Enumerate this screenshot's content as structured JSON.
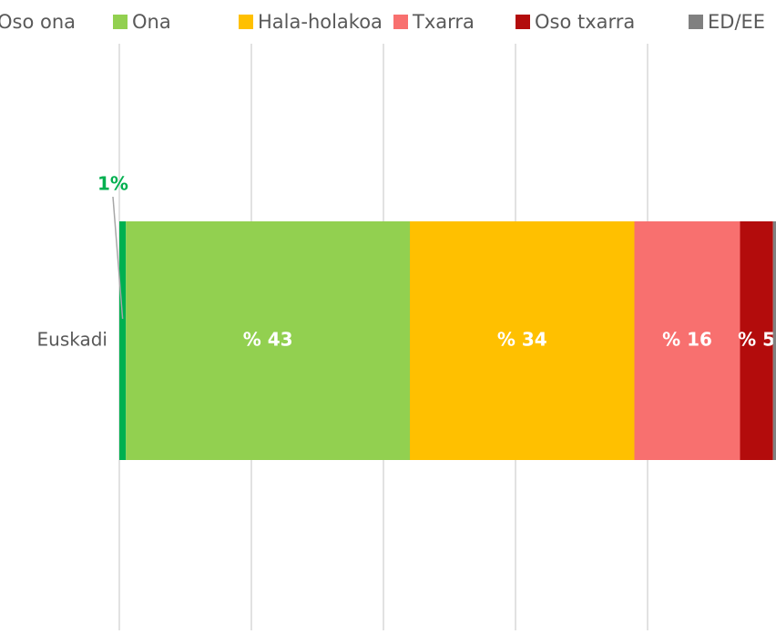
{
  "chart_data": {
    "type": "stacked_bar_horizontal",
    "categories": [
      "Euskadi"
    ],
    "series": [
      {
        "name": "Oso ona",
        "color": "#00b050",
        "values": [
          1
        ],
        "value_labels": [
          "1%"
        ]
      },
      {
        "name": "Ona",
        "color": "#92d050",
        "values": [
          43
        ],
        "value_labels": [
          "% 43"
        ]
      },
      {
        "name": "Hala-holakoa",
        "color": "#ffc000",
        "values": [
          34
        ],
        "value_labels": [
          "% 34"
        ]
      },
      {
        "name": "Txarra",
        "color": "#f8706f",
        "values": [
          16
        ],
        "value_labels": [
          "% 16"
        ]
      },
      {
        "name": "Oso txarra",
        "color": "#b30c0c",
        "values": [
          5
        ],
        "value_labels": [
          "% 5"
        ]
      },
      {
        "name": "ED/EE",
        "color": "#808080",
        "values": [
          1
        ]
      }
    ],
    "xlim": [
      0,
      100
    ],
    "xticks": [
      0,
      20,
      40,
      60,
      80
    ],
    "grid": true,
    "legend": "top"
  }
}
